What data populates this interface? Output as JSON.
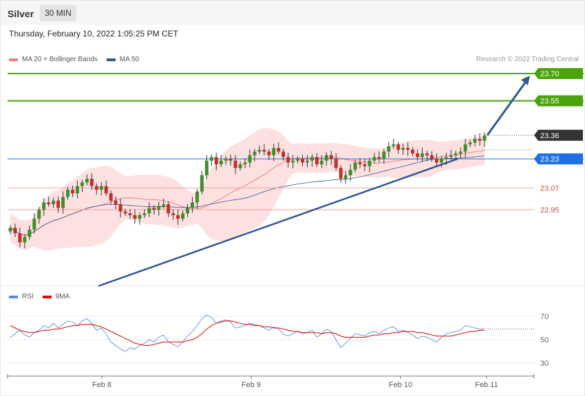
{
  "header": {
    "symbol": "Silver",
    "timeframe": "30 MIN"
  },
  "datetime": "Thursday, February 10, 2022 1:05:25 PM CET",
  "legend": {
    "main": [
      {
        "label": "MA 20 + Bollinger Bands",
        "color": "#f08080"
      },
      {
        "label": "MA 50",
        "color": "#2f5597"
      }
    ],
    "rsi": [
      {
        "label": "RSI",
        "color": "#5b8bd8"
      },
      {
        "label": "9MA",
        "color": "#e00000"
      }
    ]
  },
  "credit": "Research © 2022 Trading Central",
  "chart_data": [
    {
      "type": "candlestick",
      "xlabel": "",
      "ylabel": "",
      "x_ticks": [
        "Feb 8",
        "Feb 9",
        "Feb 10",
        "Feb 11"
      ],
      "ylim": [
        22.7,
        23.72
      ],
      "last_price": 23.36,
      "levels": [
        {
          "value": 23.7,
          "label": "23.70",
          "kind": "target",
          "color": "#4ca30d"
        },
        {
          "value": 23.55,
          "label": "23.55",
          "kind": "target",
          "color": "#4ca30d"
        },
        {
          "value": 23.36,
          "label": "23.36",
          "kind": "last",
          "color": "#333333"
        },
        {
          "value": 23.23,
          "label": "23.23",
          "kind": "pivot",
          "color": "#1f6fe5"
        },
        {
          "value": 23.07,
          "label": "23.07",
          "kind": "support",
          "color": "#e04545"
        },
        {
          "value": 22.95,
          "label": "22.95",
          "kind": "support",
          "color": "#e04545"
        }
      ],
      "closes": [
        22.85,
        22.82,
        22.77,
        22.8,
        22.84,
        22.9,
        22.95,
        22.99,
        22.98,
        23.0,
        22.96,
        23.02,
        23.06,
        23.04,
        23.08,
        23.1,
        23.12,
        23.08,
        23.06,
        23.08,
        23.04,
        23.0,
        22.98,
        22.94,
        22.93,
        22.92,
        22.9,
        22.92,
        22.93,
        22.96,
        22.95,
        22.97,
        22.98,
        22.93,
        22.92,
        22.9,
        22.93,
        22.96,
        22.99,
        23.05,
        23.14,
        23.22,
        23.24,
        23.2,
        23.22,
        23.23,
        23.22,
        23.18,
        23.2,
        23.21,
        23.25,
        23.27,
        23.28,
        23.27,
        23.25,
        23.29,
        23.27,
        23.24,
        23.21,
        23.22,
        23.23,
        23.21,
        23.22,
        23.24,
        23.2,
        23.22,
        23.25,
        23.23,
        23.18,
        23.12,
        23.14,
        23.17,
        23.21,
        23.2,
        23.19,
        23.22,
        23.24,
        23.23,
        23.27,
        23.3,
        23.31,
        23.28,
        23.29,
        23.28,
        23.26,
        23.24,
        23.26,
        23.25,
        23.23,
        23.21,
        23.23,
        23.24,
        23.25,
        23.26,
        23.27,
        23.31,
        23.32,
        23.34,
        23.33,
        23.36
      ]
    },
    {
      "type": "line",
      "title": "",
      "ylim": [
        20,
        80
      ],
      "y_ticks": [
        70,
        50,
        30
      ],
      "series": [
        {
          "name": "RSI",
          "color": "#5b8bd8",
          "values": [
            52,
            55,
            58,
            54,
            52,
            56,
            58,
            62,
            60,
            64,
            60,
            63,
            66,
            65,
            62,
            66,
            68,
            64,
            58,
            60,
            55,
            48,
            45,
            42,
            40,
            43,
            42,
            45,
            47,
            50,
            48,
            52,
            54,
            48,
            46,
            44,
            48,
            53,
            57,
            62,
            68,
            71,
            69,
            64,
            66,
            67,
            65,
            60,
            61,
            62,
            64,
            63,
            62,
            60,
            58,
            61,
            59,
            55,
            53,
            55,
            57,
            55,
            56,
            58,
            52,
            55,
            59,
            57,
            50,
            43,
            47,
            51,
            55,
            54,
            53,
            56,
            57,
            55,
            58,
            60,
            61,
            57,
            58,
            56,
            54,
            51,
            53,
            52,
            50,
            48,
            52,
            55,
            56,
            57,
            58,
            62,
            61,
            60,
            59,
            59
          ]
        },
        {
          "name": "9MA",
          "color": "#e00000",
          "values": [
            62,
            60,
            58,
            57,
            56,
            56,
            57,
            58,
            58,
            59,
            59,
            60,
            61,
            62,
            62,
            63,
            63,
            63,
            62,
            61,
            59,
            57,
            55,
            53,
            51,
            49,
            47,
            46,
            45,
            45,
            46,
            47,
            48,
            48,
            48,
            48,
            48,
            49,
            50,
            52,
            55,
            59,
            62,
            64,
            65,
            66,
            66,
            65,
            64,
            63,
            63,
            62,
            62,
            61,
            61,
            60,
            60,
            59,
            58,
            57,
            57,
            56,
            56,
            56,
            56,
            55,
            56,
            56,
            55,
            53,
            52,
            52,
            52,
            52,
            52,
            53,
            54,
            54,
            55,
            55,
            56,
            56,
            57,
            57,
            57,
            56,
            56,
            55,
            54,
            53,
            53,
            53,
            53,
            54,
            55,
            56,
            57,
            57,
            58,
            58
          ]
        }
      ]
    }
  ]
}
